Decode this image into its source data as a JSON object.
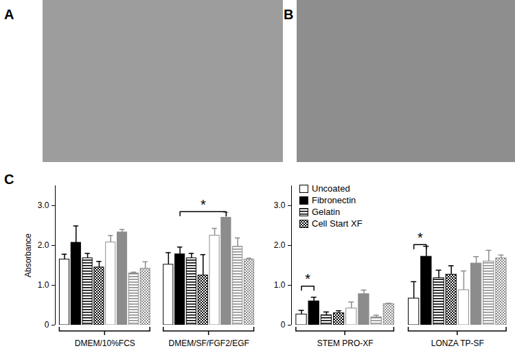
{
  "panels": [
    "A",
    "B",
    "C"
  ],
  "chart_data": [
    {
      "type": "bar",
      "y_label": "Absorbance",
      "categories": [
        "DMEM/10%FCS",
        "DMEM/SF/FGF2/EGF"
      ],
      "ylim": [
        0,
        3.5
      ],
      "yticks": [
        0,
        {
          "value": 1,
          "label": "1.0"
        },
        {
          "value": 2,
          "label": "2.0"
        },
        {
          "value": 3,
          "label": "3.0"
        }
      ],
      "series": [
        {
          "name": "Uncoated",
          "color": "#000000",
          "values": [
            1.65,
            1.52
          ],
          "errors": [
            0.13,
            0.3
          ]
        },
        {
          "name": "Fibronectin",
          "color": "#000000",
          "values": [
            2.07,
            1.78
          ],
          "errors": [
            0.42,
            0.18
          ]
        },
        {
          "name": "Gelatin",
          "color": "#000000",
          "values": [
            1.68,
            1.68
          ],
          "errors": [
            0.12,
            0.12
          ]
        },
        {
          "name": "Cell Start XF",
          "color": "#000000",
          "values": [
            1.45,
            1.25
          ],
          "errors": [
            0.15,
            0.52
          ]
        },
        {
          "name": null,
          "color": "#8c8c8c",
          "values": [
            2.08,
            2.25
          ],
          "errors": [
            0.17,
            0.18
          ]
        },
        {
          "name": null,
          "color": "#8c8c8c",
          "values": [
            2.33,
            2.7
          ],
          "errors": [
            0.07,
            0.13
          ]
        },
        {
          "name": null,
          "color": "#8c8c8c",
          "values": [
            1.3,
            1.97
          ],
          "errors": [
            0.03,
            0.22
          ]
        },
        {
          "name": null,
          "color": "#8c8c8c",
          "values": [
            1.42,
            1.65
          ],
          "errors": [
            0.17,
            0.03
          ]
        }
      ],
      "annotations": [
        {
          "text": "*",
          "category": "DMEM/SF/FGF2/EGF",
          "from_series": 1,
          "to_series": 5,
          "y": 2.85
        }
      ]
    },
    {
      "type": "bar",
      "legend": "top-left",
      "categories": [
        "STEM PRO-XF",
        "LONZA TP-SF"
      ],
      "ylim": [
        0,
        3.5
      ],
      "yticks": [
        0,
        {
          "value": 1,
          "label": "1.0"
        },
        {
          "value": 2,
          "label": "2.0"
        },
        {
          "value": 3,
          "label": "3.0"
        }
      ],
      "series": [
        {
          "name": "Uncoated",
          "color": "#000000",
          "values": [
            0.27,
            0.67
          ],
          "errors": [
            0.1,
            0.42
          ]
        },
        {
          "name": "Fibronectin",
          "color": "#000000",
          "values": [
            0.6,
            1.72
          ],
          "errors": [
            0.1,
            0.26
          ]
        },
        {
          "name": "Gelatin",
          "color": "#000000",
          "values": [
            0.25,
            1.18
          ],
          "errors": [
            0.08,
            0.2
          ]
        },
        {
          "name": "Cell Start XF",
          "color": "#000000",
          "values": [
            0.3,
            1.27
          ],
          "errors": [
            0.06,
            0.22
          ]
        },
        {
          "name": null,
          "color": "#8c8c8c",
          "values": [
            0.42,
            0.88
          ],
          "errors": [
            0.16,
            0.48
          ]
        },
        {
          "name": null,
          "color": "#8c8c8c",
          "values": [
            0.78,
            1.55
          ],
          "errors": [
            0.1,
            0.17
          ]
        },
        {
          "name": null,
          "color": "#8c8c8c",
          "values": [
            0.2,
            1.6
          ],
          "errors": [
            0.05,
            0.28
          ]
        },
        {
          "name": null,
          "color": "#8c8c8c",
          "values": [
            0.53,
            1.68
          ],
          "errors": [
            0.02,
            0.08
          ]
        }
      ],
      "annotations": [
        {
          "text": "*",
          "category": "STEM PRO-XF",
          "from_series": 0,
          "to_series": 1,
          "y": 0.98
        },
        {
          "text": "*",
          "category": "LONZA TP-SF",
          "from_series": 0,
          "to_series": 1,
          "y": 2.02
        }
      ]
    }
  ]
}
